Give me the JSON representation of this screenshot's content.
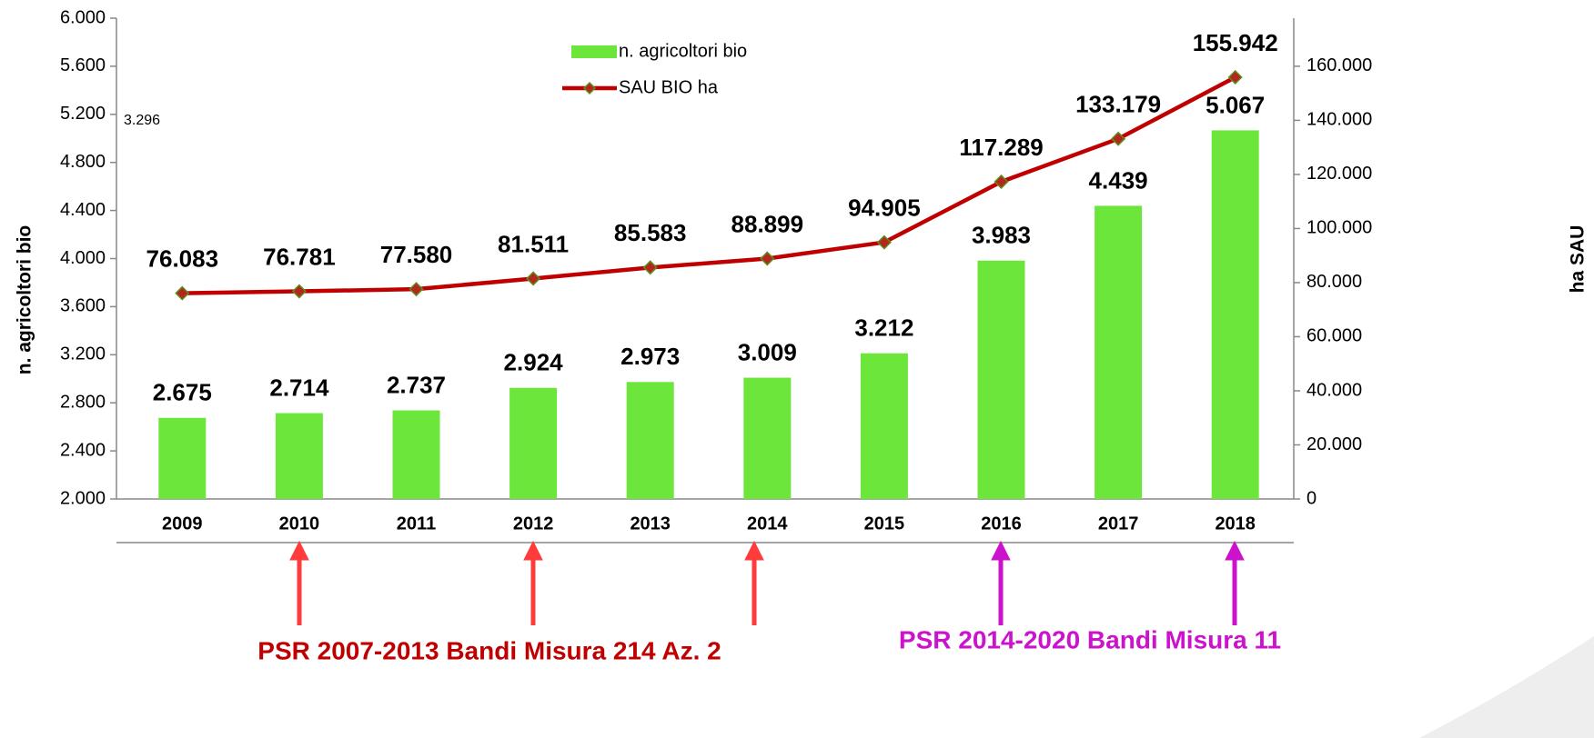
{
  "chart_data": {
    "type": "combo",
    "categories": [
      "2009",
      "2010",
      "2011",
      "2012",
      "2013",
      "2014",
      "2015",
      "2016",
      "2017",
      "2018"
    ],
    "series": [
      {
        "name": "n. agricoltori bio",
        "type": "bar",
        "color": "#6de63c",
        "values": [
          2675,
          2714,
          2737,
          2924,
          2973,
          3009,
          3212,
          3983,
          4439,
          5067
        ],
        "value_labels": [
          "2.675",
          "2.714",
          "2.737",
          "2.924",
          "2.973",
          "3.009",
          "3.212",
          "3.983",
          "4.439",
          "5.067"
        ]
      },
      {
        "name": "SAU BIO ha",
        "type": "line",
        "axis": "y2",
        "color": "#c00000",
        "marker_color": "#b5261e",
        "marker_edge": "#5a8f1c",
        "values": [
          76083,
          76781,
          77580,
          81511,
          85583,
          88899,
          94905,
          117289,
          133179,
          155942
        ],
        "value_labels": [
          "76.083",
          "76.781",
          "77.580",
          "81.511",
          "85.583",
          "88.899",
          "94.905",
          "117.289",
          "133.179",
          "155.942"
        ]
      }
    ],
    "ylabel": "n. agricoltori bio",
    "y2label": "ha SAU",
    "ylim": [
      2000,
      6000
    ],
    "yticks": [
      {
        "value": 2000,
        "label": "2.000"
      },
      {
        "value": 2400,
        "label": "2.400"
      },
      {
        "value": 2800,
        "label": "2.800"
      },
      {
        "value": 3200,
        "label": "3.200"
      },
      {
        "value": 3600,
        "label": "3.600"
      },
      {
        "value": 4000,
        "label": "4.000"
      },
      {
        "value": 4400,
        "label": "4.400"
      },
      {
        "value": 4800,
        "label": "4.800"
      },
      {
        "value": 5200,
        "label": "5.200"
      },
      {
        "value": 5600,
        "label": "5.600"
      },
      {
        "value": 6000,
        "label": "6.000"
      }
    ],
    "y2lim": [
      0,
      177778
    ],
    "y2ticks": [
      0,
      {
        "value": 20000,
        "label": "20.000"
      },
      {
        "value": 40000,
        "label": "40.000"
      },
      {
        "value": 60000,
        "label": "60.000"
      },
      {
        "value": 80000,
        "label": "80.000"
      },
      {
        "value": 100000,
        "label": "100.000"
      },
      {
        "value": 120000,
        "label": "120.000"
      },
      {
        "value": 140000,
        "label": "140.000"
      },
      {
        "value": 160000,
        "label": "160.000"
      }
    ],
    "legend": "top",
    "stray_label": "3.296",
    "annotations": [
      "PSR 2007-2013 Bandi Misura 214 Az. 2",
      "PSR 2014-2020 Bandi Misura 11"
    ]
  }
}
